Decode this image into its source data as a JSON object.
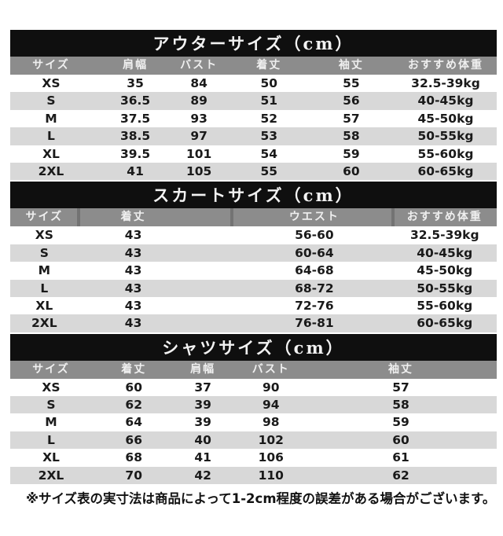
{
  "colors": {
    "title_bar_bg": "#0f0f0f",
    "title_text": "#f2f2f2",
    "header_band_bg": "#8c8c8c",
    "header_text": "#efefef",
    "stripe_bg": "#d8d8d8",
    "data_text": "#1a1a1a",
    "page_bg": "#ffffff"
  },
  "tables": [
    {
      "title": "アウターサイズ（cm）",
      "headers": [
        "サイズ",
        "肩幅",
        "バスト",
        "着丈",
        "袖丈",
        "おすすめ体重"
      ],
      "rows": [
        [
          "XS",
          "35",
          "84",
          "50",
          "55",
          "32.5-39kg"
        ],
        [
          "S",
          "36.5",
          "89",
          "51",
          "56",
          "40-45kg"
        ],
        [
          "M",
          "37.5",
          "93",
          "52",
          "57",
          "45-50kg"
        ],
        [
          "L",
          "38.5",
          "97",
          "53",
          "58",
          "50-55kg"
        ],
        [
          "XL",
          "39.5",
          "101",
          "54",
          "59",
          "55-60kg"
        ],
        [
          "2XL",
          "41",
          "105",
          "55",
          "60",
          "60-65kg"
        ]
      ]
    },
    {
      "title": "スカートサイズ（cm）",
      "headers": [
        "サイズ",
        "着丈",
        "ウエスト",
        "おすすめ体重"
      ],
      "rows": [
        [
          "XS",
          "43",
          "56-60",
          "32.5-39kg"
        ],
        [
          "S",
          "43",
          "60-64",
          "40-45kg"
        ],
        [
          "M",
          "43",
          "64-68",
          "45-50kg"
        ],
        [
          "L",
          "43",
          "68-72",
          "50-55kg"
        ],
        [
          "XL",
          "43",
          "72-76",
          "55-60kg"
        ],
        [
          "2XL",
          "43",
          "76-81",
          "60-65kg"
        ]
      ]
    },
    {
      "title": "シャツサイズ（cm）",
      "headers": [
        "サイズ",
        "着丈",
        "肩幅",
        "バスト",
        "袖丈"
      ],
      "rows": [
        [
          "XS",
          "60",
          "37",
          "90",
          "57"
        ],
        [
          "S",
          "62",
          "39",
          "94",
          "58"
        ],
        [
          "M",
          "64",
          "39",
          "98",
          "59"
        ],
        [
          "L",
          "66",
          "40",
          "102",
          "60"
        ],
        [
          "XL",
          "68",
          "41",
          "106",
          "61"
        ],
        [
          "2XL",
          "70",
          "42",
          "110",
          "62"
        ]
      ]
    }
  ],
  "footnote": "※サイズ表の実寸法は商品によって1-2cm程度の誤差がある場合がございます。"
}
